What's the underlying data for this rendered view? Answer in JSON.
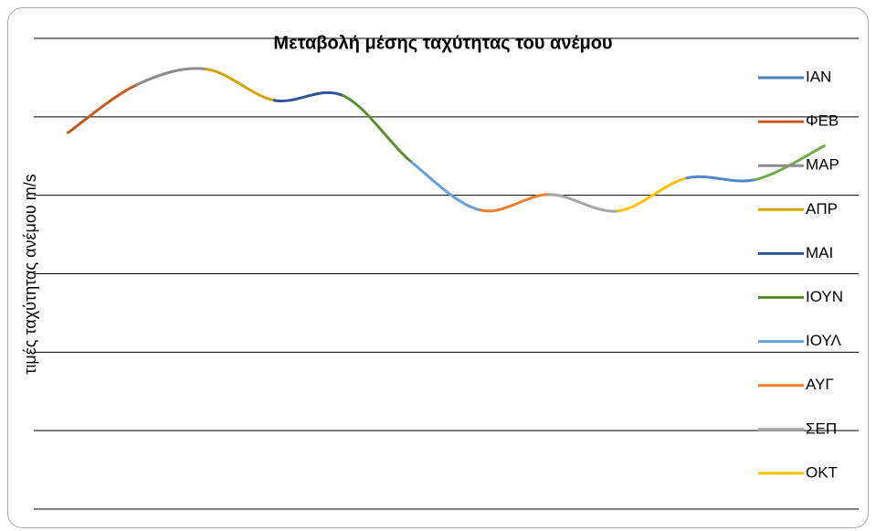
{
  "chart_data": {
    "type": "line",
    "title": "Μεταβολή μέσης ταχύτητας του ανέμου",
    "y_label": "τιμές ταχύτητας ανέμου m/s",
    "categories": [
      "ΙΑΝ",
      "ΦΕΒ",
      "ΜΑΡ",
      "ΑΠΡ",
      "ΜΑΙ",
      "ΙΟΥΝ",
      "ΙΟΥΛ",
      "ΑΥΓ",
      "ΣΕΠ",
      "ΟΚΤ",
      null,
      null
    ],
    "values": [
      4.8,
      5.41,
      5.61,
      5.21,
      5.27,
      4.42,
      3.81,
      4.01,
      3.8,
      4.22,
      4.2,
      4.63
    ],
    "colors": [
      "#4a7ebb",
      "#c55a1c",
      "#8c8c8c",
      "#d4a500",
      "#2e5597",
      "#5b8f32",
      "#68a0d8",
      "#ed7d31",
      "#a5a5a5",
      "#ffc000",
      "#4e88c7",
      "#70ad47"
    ],
    "ylim": [
      0,
      6
    ],
    "yticks": [
      0,
      1,
      2,
      3,
      4,
      5,
      6
    ],
    "grid": true,
    "legend": "right"
  }
}
